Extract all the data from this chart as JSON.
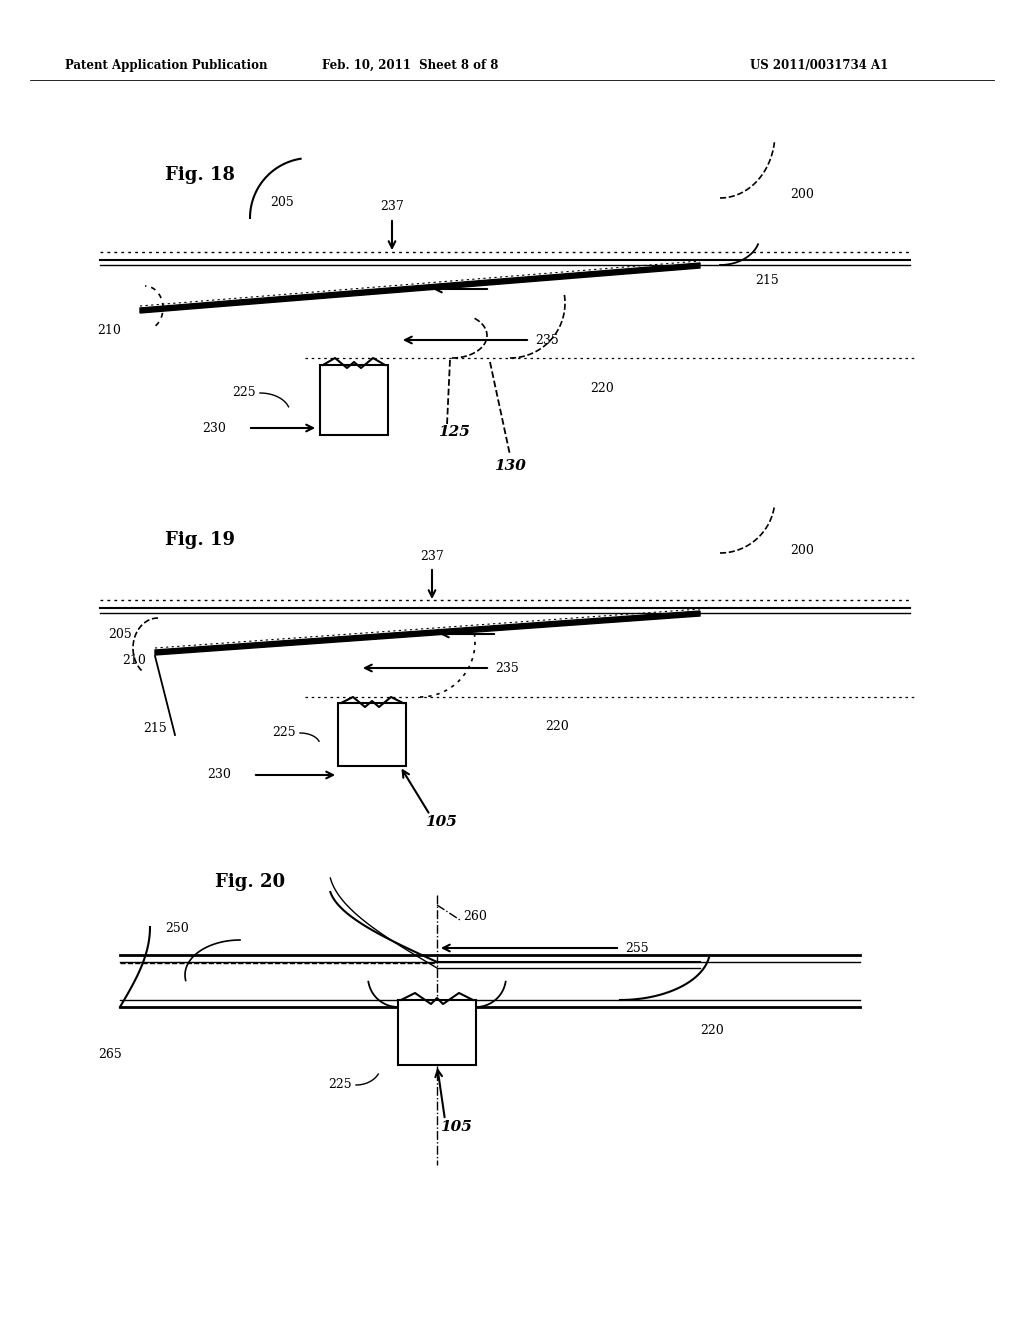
{
  "bg_color": "#ffffff",
  "header_left": "Patent Application Publication",
  "header_mid": "Feb. 10, 2011  Sheet 8 of 8",
  "header_right": "US 2011/0031734 A1",
  "fig18_label": "Fig. 18",
  "fig19_label": "Fig. 19",
  "fig20_label": "Fig. 20"
}
